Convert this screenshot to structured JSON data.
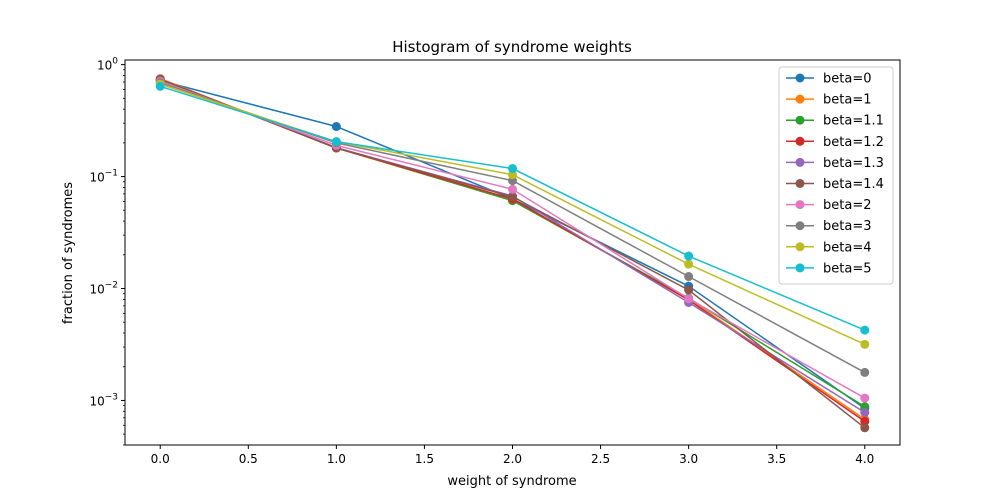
{
  "chart_data": {
    "type": "line",
    "title": "Histogram of syndrome weights",
    "xlabel": "weight of syndrome",
    "ylabel": "fraction of syndromes",
    "yscale": "log",
    "grid": false,
    "legend": "top-right",
    "xlim": [
      -0.2,
      4.2
    ],
    "ylim": [
      0.0004,
      1.1
    ],
    "xticks": [
      {
        "value": 0.0,
        "label": "0.0"
      },
      {
        "value": 0.5,
        "label": "0.5"
      },
      {
        "value": 1.0,
        "label": "1.0"
      },
      {
        "value": 1.5,
        "label": "1.5"
      },
      {
        "value": 2.0,
        "label": "2.0"
      },
      {
        "value": 2.5,
        "label": "2.5"
      },
      {
        "value": 3.0,
        "label": "3.0"
      },
      {
        "value": 3.5,
        "label": "3.5"
      },
      {
        "value": 4.0,
        "label": "4.0"
      }
    ],
    "yticks": [
      {
        "value": 0.001,
        "base": "10",
        "exp": "−3"
      },
      {
        "value": 0.01,
        "base": "10",
        "exp": "−2"
      },
      {
        "value": 0.1,
        "base": "10",
        "exp": "−1"
      },
      {
        "value": 1,
        "base": "10",
        "exp": "0"
      }
    ],
    "x": [
      0,
      1,
      2,
      3,
      4
    ],
    "series": [
      {
        "name": "beta=0",
        "color": "#1f77b4",
        "values": [
          0.72,
          0.28,
          0.063,
          0.0105,
          0.00085
        ]
      },
      {
        "name": "beta=1",
        "color": "#ff7f0e",
        "values": [
          0.75,
          0.18,
          0.061,
          0.0081,
          0.00068
        ]
      },
      {
        "name": "beta=1.1",
        "color": "#2ca02c",
        "values": [
          0.74,
          0.181,
          0.061,
          0.0082,
          0.00088
        ]
      },
      {
        "name": "beta=1.2",
        "color": "#d62728",
        "values": [
          0.74,
          0.18,
          0.063,
          0.0079,
          0.00065
        ]
      },
      {
        "name": "beta=1.3",
        "color": "#9467bd",
        "values": [
          0.74,
          0.181,
          0.067,
          0.0075,
          0.00078
        ]
      },
      {
        "name": "beta=1.4",
        "color": "#8c564b",
        "values": [
          0.74,
          0.18,
          0.066,
          0.0097,
          0.00057
        ]
      },
      {
        "name": "beta=2",
        "color": "#e377c2",
        "values": [
          0.71,
          0.19,
          0.077,
          0.0081,
          0.00105
        ]
      },
      {
        "name": "beta=3",
        "color": "#7f7f7f",
        "values": [
          0.69,
          0.2,
          0.092,
          0.0128,
          0.00178
        ]
      },
      {
        "name": "beta=4",
        "color": "#bcbd22",
        "values": [
          0.67,
          0.205,
          0.104,
          0.0165,
          0.00317
        ]
      },
      {
        "name": "beta=5",
        "color": "#17becf",
        "values": [
          0.64,
          0.205,
          0.118,
          0.0195,
          0.00425
        ]
      }
    ]
  }
}
